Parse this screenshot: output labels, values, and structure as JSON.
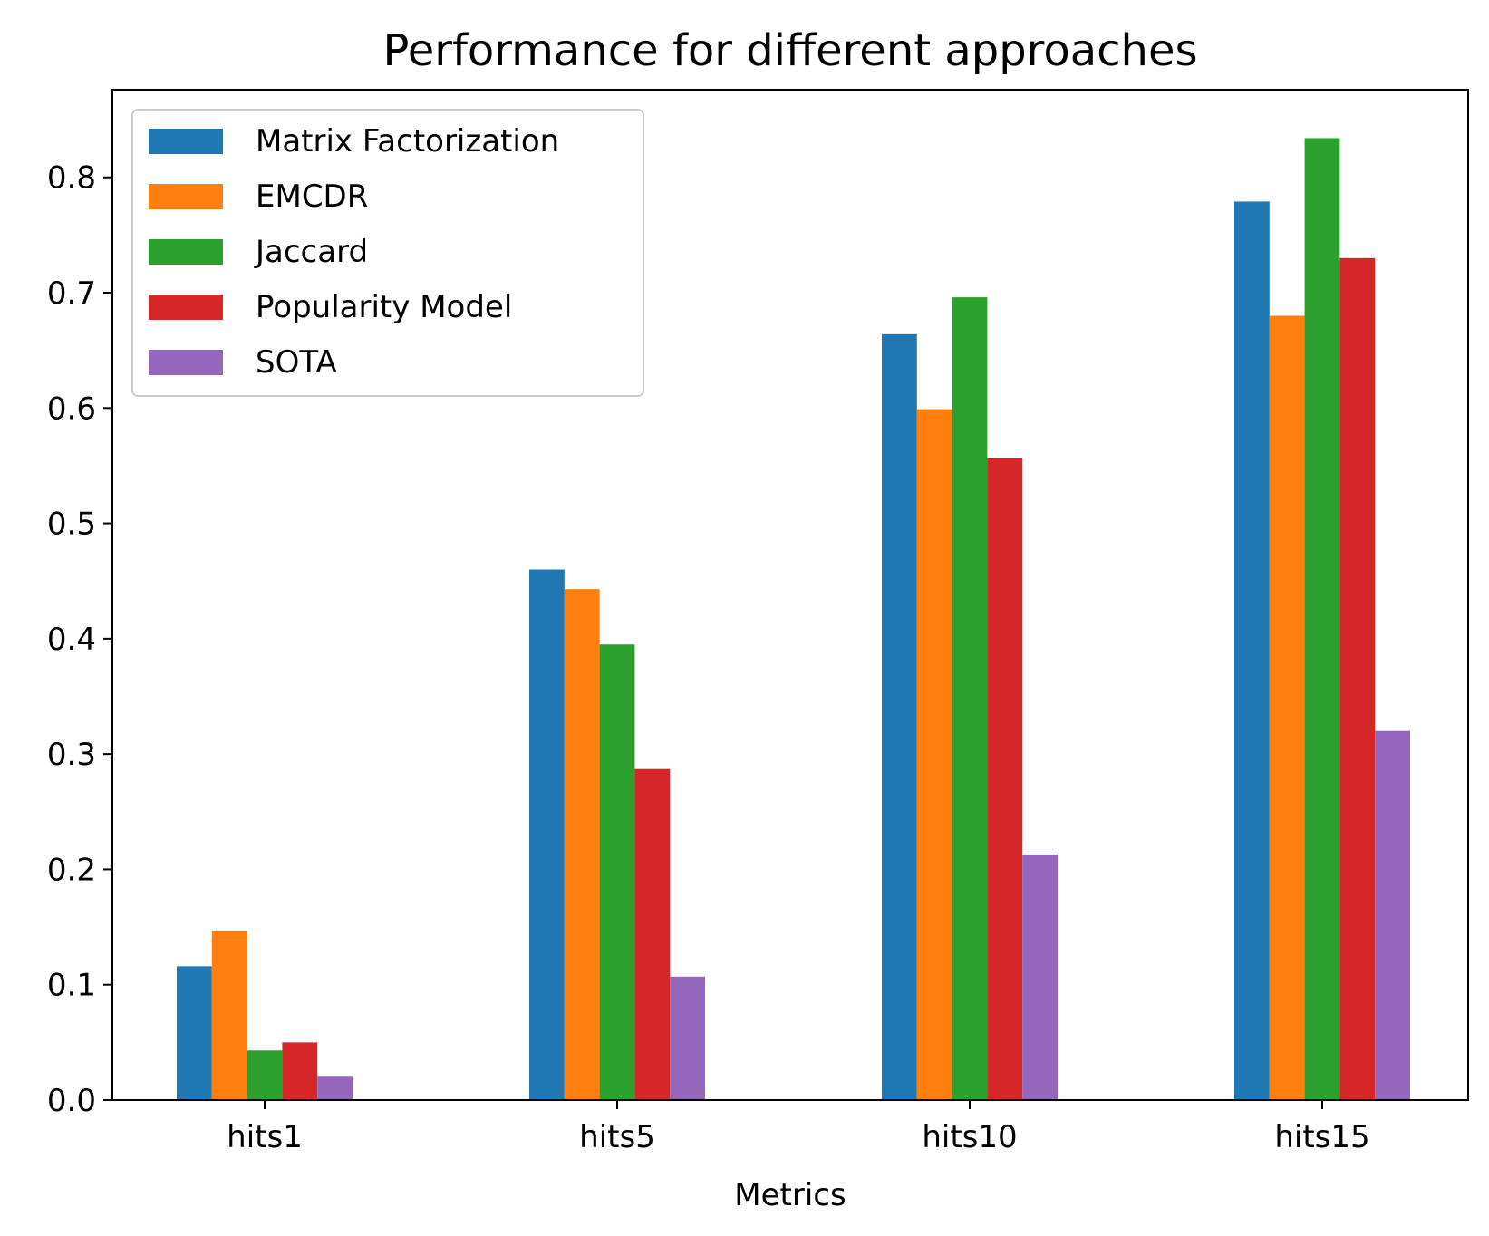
{
  "chart_data": {
    "type": "bar",
    "title": "Performance for different approaches",
    "xlabel": "Metrics",
    "ylabel": "",
    "categories": [
      "hits1",
      "hits5",
      "hits10",
      "hits15"
    ],
    "ylim": [
      0,
      0.876
    ],
    "yticks": [
      "0.0",
      "0.1",
      "0.2",
      "0.3",
      "0.4",
      "0.5",
      "0.6",
      "0.7",
      "0.8"
    ],
    "grid": false,
    "legend_position": "upper left",
    "series": [
      {
        "name": "Matrix Factorization",
        "color": "#1f77b4",
        "values": [
          0.116,
          0.46,
          0.664,
          0.779
        ]
      },
      {
        "name": "EMCDR",
        "color": "#ff7f0e",
        "values": [
          0.147,
          0.443,
          0.599,
          0.68
        ]
      },
      {
        "name": "Jaccard",
        "color": "#2ca02c",
        "values": [
          0.043,
          0.395,
          0.696,
          0.834
        ]
      },
      {
        "name": "Popularity Model",
        "color": "#d62728",
        "values": [
          0.05,
          0.287,
          0.557,
          0.73
        ]
      },
      {
        "name": "SOTA",
        "color": "#9467bd",
        "values": [
          0.021,
          0.107,
          0.213,
          0.32
        ]
      }
    ]
  }
}
